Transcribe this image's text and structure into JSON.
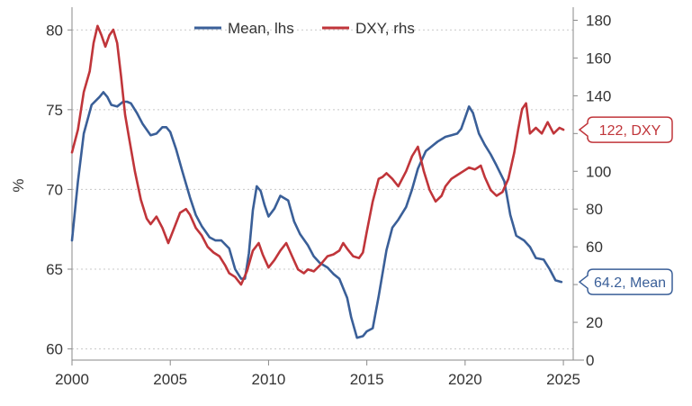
{
  "chart_data": {
    "type": "line",
    "title": "",
    "xlabel": "",
    "ylabel": "%",
    "y2label": "",
    "xlim": [
      2000,
      2025.5
    ],
    "ylim": [
      59.3,
      81.2
    ],
    "y2lim": [
      0,
      185
    ],
    "x_ticks": [
      2000,
      2005,
      2010,
      2015,
      2020,
      2025
    ],
    "y_ticks": [
      60,
      65,
      70,
      75,
      80
    ],
    "y2_ticks": [
      0,
      20,
      40,
      60,
      80,
      100,
      120,
      140,
      160,
      180
    ],
    "grid": true,
    "legend": {
      "position": "top-center",
      "entries": [
        "Mean, lhs",
        "DXY, rhs"
      ]
    },
    "series": [
      {
        "name": "Mean, lhs",
        "axis": "left",
        "color": "#3a5f98",
        "x": [
          2000.0,
          2000.3,
          2000.6,
          2001.0,
          2001.4,
          2001.6,
          2001.8,
          2002.0,
          2002.3,
          2002.6,
          2002.8,
          2003.0,
          2003.3,
          2003.6,
          2004.0,
          2004.3,
          2004.6,
          2004.8,
          2005.0,
          2005.3,
          2005.6,
          2006.0,
          2006.3,
          2006.6,
          2007.0,
          2007.3,
          2007.6,
          2008.0,
          2008.3,
          2008.6,
          2008.8,
          2009.0,
          2009.2,
          2009.4,
          2009.6,
          2009.8,
          2010.0,
          2010.3,
          2010.6,
          2011.0,
          2011.3,
          2011.6,
          2012.0,
          2012.3,
          2012.6,
          2013.0,
          2013.3,
          2013.6,
          2014.0,
          2014.2,
          2014.5,
          2014.8,
          2015.0,
          2015.3,
          2015.6,
          2016.0,
          2016.3,
          2016.6,
          2017.0,
          2017.3,
          2017.6,
          2018.0,
          2018.3,
          2018.6,
          2019.0,
          2019.3,
          2019.6,
          2019.8,
          2020.0,
          2020.2,
          2020.4,
          2020.7,
          2021.0,
          2021.3,
          2021.6,
          2022.0,
          2022.3,
          2022.6,
          2023.0,
          2023.3,
          2023.6,
          2024.0,
          2024.3,
          2024.6,
          2024.9
        ],
        "values": [
          66.8,
          70.5,
          73.5,
          75.3,
          75.8,
          76.1,
          75.8,
          75.3,
          75.2,
          75.5,
          75.5,
          75.4,
          74.8,
          74.1,
          73.4,
          73.5,
          73.9,
          73.9,
          73.6,
          72.5,
          71.2,
          69.5,
          68.4,
          67.7,
          67.0,
          66.8,
          66.8,
          66.3,
          65.0,
          64.4,
          64.4,
          66.0,
          68.7,
          70.2,
          69.9,
          69.0,
          68.3,
          68.8,
          69.6,
          69.3,
          68.0,
          67.2,
          66.5,
          65.8,
          65.4,
          65.1,
          64.7,
          64.4,
          63.2,
          62.0,
          60.7,
          60.8,
          61.1,
          61.3,
          63.3,
          66.2,
          67.6,
          68.1,
          68.9,
          70.0,
          71.3,
          72.4,
          72.7,
          73.0,
          73.3,
          73.4,
          73.5,
          73.8,
          74.5,
          75.2,
          74.8,
          73.5,
          72.8,
          72.2,
          71.5,
          70.5,
          68.4,
          67.1,
          66.8,
          66.4,
          65.7,
          65.6,
          65.0,
          64.3,
          64.2
        ]
      },
      {
        "name": "DXY, rhs",
        "axis": "right",
        "color": "#c0353a",
        "x": [
          2000.0,
          2000.3,
          2000.6,
          2000.9,
          2001.1,
          2001.3,
          2001.5,
          2001.7,
          2001.9,
          2002.1,
          2002.3,
          2002.5,
          2002.7,
          2002.9,
          2003.2,
          2003.5,
          2003.8,
          2004.0,
          2004.3,
          2004.6,
          2004.9,
          2005.2,
          2005.5,
          2005.8,
          2006.0,
          2006.3,
          2006.6,
          2006.9,
          2007.2,
          2007.5,
          2007.8,
          2008.0,
          2008.3,
          2008.6,
          2008.9,
          2009.2,
          2009.5,
          2009.7,
          2010.0,
          2010.3,
          2010.6,
          2010.9,
          2011.2,
          2011.5,
          2011.8,
          2012.0,
          2012.3,
          2012.6,
          2013.0,
          2013.3,
          2013.6,
          2013.8,
          2014.0,
          2014.3,
          2014.6,
          2014.8,
          2015.0,
          2015.3,
          2015.6,
          2015.8,
          2016.0,
          2016.3,
          2016.6,
          2017.0,
          2017.3,
          2017.6,
          2017.9,
          2018.2,
          2018.5,
          2018.8,
          2019.0,
          2019.3,
          2019.6,
          2019.9,
          2020.2,
          2020.5,
          2020.8,
          2021.0,
          2021.3,
          2021.6,
          2021.9,
          2022.2,
          2022.5,
          2022.7,
          2022.9,
          2023.1,
          2023.3,
          2023.6,
          2023.9,
          2024.2,
          2024.5,
          2024.8,
          2025.0
        ],
        "values": [
          110,
          122,
          142,
          153,
          168,
          177,
          172,
          166,
          172,
          175,
          168,
          150,
          130,
          118,
          100,
          85,
          75,
          72,
          76,
          70,
          62,
          70,
          78,
          80,
          77,
          70,
          66,
          60,
          57,
          55,
          50,
          46,
          44,
          40,
          47,
          58,
          62,
          56,
          49,
          53,
          58,
          62,
          55,
          48,
          46,
          48,
          47,
          50,
          55,
          56,
          58,
          62,
          59,
          55,
          54,
          57,
          68,
          84,
          96,
          97,
          99,
          96,
          92,
          100,
          108,
          113,
          100,
          90,
          84,
          87,
          92,
          96,
          98,
          100,
          102,
          101,
          103,
          97,
          90,
          87,
          89,
          96,
          110,
          122,
          133,
          136,
          120,
          123,
          120,
          126,
          120,
          123,
          122
        ]
      }
    ],
    "annotations": [
      {
        "series": "DXY, rhs",
        "label": "122, DXY",
        "value": 122
      },
      {
        "series": "Mean, lhs",
        "label": "64.2, Mean",
        "value": 64.2
      }
    ]
  }
}
